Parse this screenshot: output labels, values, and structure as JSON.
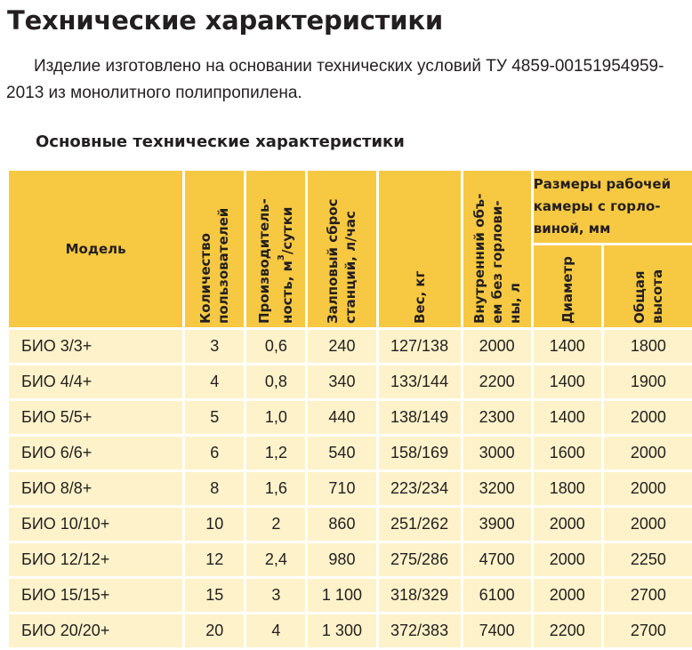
{
  "title": "Технические характеристики",
  "intro": "Изделие изготовлено на основании технических условий ТУ 4859-00151954959-2013 из монолитного полипропилена.",
  "subtitle": "Основные технические характеристики",
  "table": {
    "headers": {
      "model": "Модель",
      "users": "Количество пользователей",
      "productivity_prefix": "Производитель-ность, м",
      "productivity_sup": "3",
      "productivity_suffix": "/сутки",
      "discharge": "Залповый сброс станций, л/час",
      "weight": "Вес, кг",
      "volume": "Внутренний объ-ем без горлови-ны, л",
      "chamber_group": "Размеры рабочей камеры с горло-виной, мм",
      "diameter": "Диаметр",
      "height": "Общая высота"
    },
    "rows": [
      {
        "model": "БИО 3/3+",
        "users": "3",
        "productivity": "0,6",
        "discharge": "240",
        "weight": "127/138",
        "volume": "2000",
        "diameter": "1400",
        "height": "1800"
      },
      {
        "model": "БИО 4/4+",
        "users": "4",
        "productivity": "0,8",
        "discharge": "340",
        "weight": "133/144",
        "volume": "2200",
        "diameter": "1400",
        "height": "1900"
      },
      {
        "model": "БИО 5/5+",
        "users": "5",
        "productivity": "1,0",
        "discharge": "440",
        "weight": "138/149",
        "volume": "2300",
        "diameter": "1400",
        "height": "2000"
      },
      {
        "model": "БИО 6/6+",
        "users": "6",
        "productivity": "1,2",
        "discharge": "540",
        "weight": "158/169",
        "volume": "3000",
        "diameter": "1600",
        "height": "2000"
      },
      {
        "model": "БИО 8/8+",
        "users": "8",
        "productivity": "1,6",
        "discharge": "710",
        "weight": "223/234",
        "volume": "3200",
        "diameter": "1800",
        "height": "2000"
      },
      {
        "model": "БИО 10/10+",
        "users": "10",
        "productivity": "2",
        "discharge": "860",
        "weight": "251/262",
        "volume": "3900",
        "diameter": "2000",
        "height": "2000"
      },
      {
        "model": "БИО 12/12+",
        "users": "12",
        "productivity": "2,4",
        "discharge": "980",
        "weight": "275/286",
        "volume": "4700",
        "diameter": "2000",
        "height": "2250"
      },
      {
        "model": "БИО 15/15+",
        "users": "15",
        "productivity": "3",
        "discharge": "1 100",
        "weight": "318/329",
        "volume": "6100",
        "diameter": "2000",
        "height": "2700"
      },
      {
        "model": "БИО 20/20+",
        "users": "20",
        "productivity": "4",
        "discharge": "1 300",
        "weight": "372/383",
        "volume": "7400",
        "diameter": "2200",
        "height": "2700"
      }
    ]
  }
}
